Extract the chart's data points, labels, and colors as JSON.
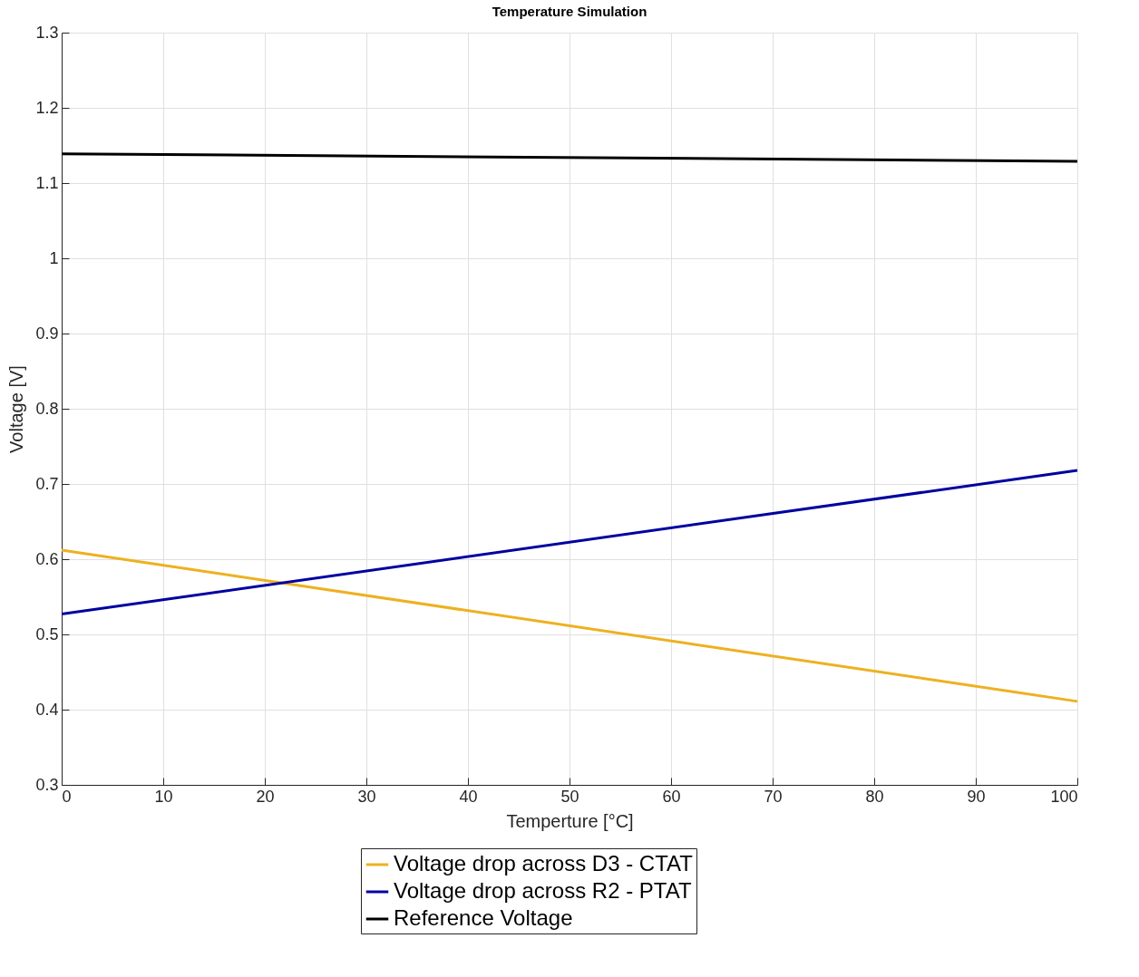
{
  "chart_data": {
    "type": "line",
    "title": "Temperature Simulation",
    "xlabel": "Temperture [°C]",
    "ylabel": "Voltage [V]",
    "x": [
      0,
      100
    ],
    "series": [
      {
        "name": "Voltage drop across D3 - CTAT",
        "color": "#edb120",
        "values": [
          0.612,
          0.411
        ]
      },
      {
        "name": "Voltage drop across R2 - PTAT",
        "color": "#0000a0",
        "values": [
          0.527,
          0.718
        ]
      },
      {
        "name": "Reference Voltage",
        "color": "#000000",
        "values": [
          1.139,
          1.129
        ]
      }
    ],
    "xlim": [
      0,
      100
    ],
    "xticks": [
      0,
      10,
      20,
      30,
      40,
      50,
      60,
      70,
      80,
      90,
      100
    ],
    "ylim": [
      0.3,
      1.3
    ],
    "yticks": [
      0.3,
      0.4,
      0.5,
      0.6,
      0.7,
      0.8,
      0.9,
      1,
      1.1,
      1.2,
      1.3
    ],
    "grid": true,
    "legend": "bottom",
    "marker": "none",
    "line_style": "solid"
  }
}
